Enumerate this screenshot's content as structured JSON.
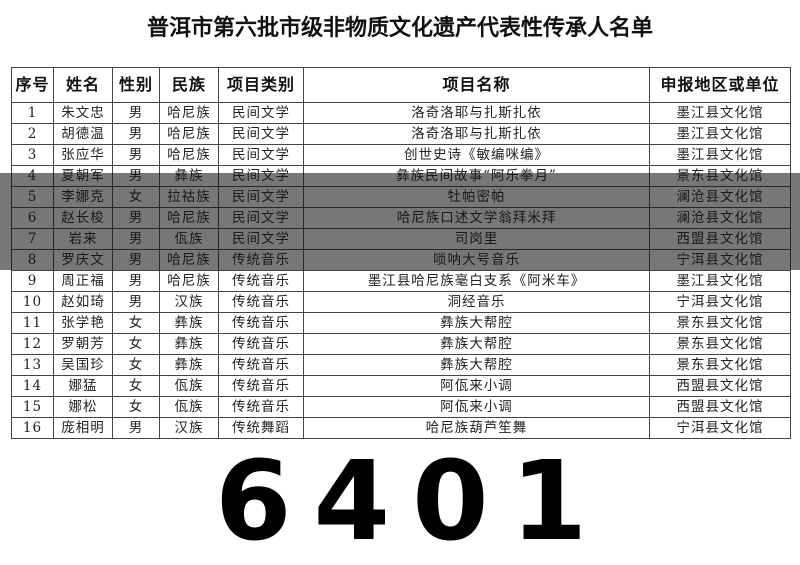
{
  "title": "普洱市第六批市级非物质文化遗产代表性传承人名单",
  "columns": [
    "序号",
    "姓名",
    "性别",
    "民族",
    "项目类别",
    "项目名称",
    "申报地区或单位"
  ],
  "rows": [
    [
      "1",
      "朱文忠",
      "男",
      "哈尼族",
      "民间文学",
      "洛奇洛耶与扎斯扎依",
      "墨江县文化馆"
    ],
    [
      "2",
      "胡德温",
      "男",
      "哈尼族",
      "民间文学",
      "洛奇洛耶与扎斯扎依",
      "墨江县文化馆"
    ],
    [
      "3",
      "张应华",
      "男",
      "哈尼族",
      "民间文学",
      "创世史诗《敏编咪编》",
      "墨江县文化馆"
    ],
    [
      "4",
      "夏朝军",
      "男",
      "彝族",
      "民间文学",
      "彝族民间故事“阿乐拳月”",
      "景东县文化馆"
    ],
    [
      "5",
      "李娜克",
      "女",
      "拉祜族",
      "民间文学",
      "牡帕密帕",
      "澜沧县文化馆"
    ],
    [
      "6",
      "赵长梭",
      "男",
      "哈尼族",
      "民间文学",
      "哈尼族口述文学翁拜米拜",
      "澜沧县文化馆"
    ],
    [
      "7",
      "岩来",
      "男",
      "佤族",
      "民间文学",
      "司岗里",
      "西盟县文化馆"
    ],
    [
      "8",
      "罗庆文",
      "男",
      "哈尼族",
      "传统音乐",
      "唢呐大号音乐",
      "宁洱县文化馆"
    ],
    [
      "9",
      "周正福",
      "男",
      "哈尼族",
      "传统音乐",
      "墨江县哈尼族毫白支系《阿米车》",
      "墨江县文化馆"
    ],
    [
      "10",
      "赵如琦",
      "男",
      "汉族",
      "传统音乐",
      "洞经音乐",
      "宁洱县文化馆"
    ],
    [
      "11",
      "张学艳",
      "女",
      "彝族",
      "传统音乐",
      "彝族大帮腔",
      "景东县文化馆"
    ],
    [
      "12",
      "罗朝芳",
      "女",
      "彝族",
      "传统音乐",
      "彝族大帮腔",
      "景东县文化馆"
    ],
    [
      "13",
      "吴国珍",
      "女",
      "彝族",
      "传统音乐",
      "彝族大帮腔",
      "景东县文化馆"
    ],
    [
      "14",
      "娜猛",
      "女",
      "佤族",
      "传统音乐",
      "阿佤来小调",
      "西盟县文化馆"
    ],
    [
      "15",
      "娜松",
      "女",
      "佤族",
      "传统音乐",
      "阿佤来小调",
      "西盟县文化馆"
    ],
    [
      "16",
      "庞相明",
      "男",
      "汉族",
      "传统舞蹈",
      "哈尼族葫芦笙舞",
      "宁洱县文化馆"
    ]
  ],
  "watermark": "6401"
}
